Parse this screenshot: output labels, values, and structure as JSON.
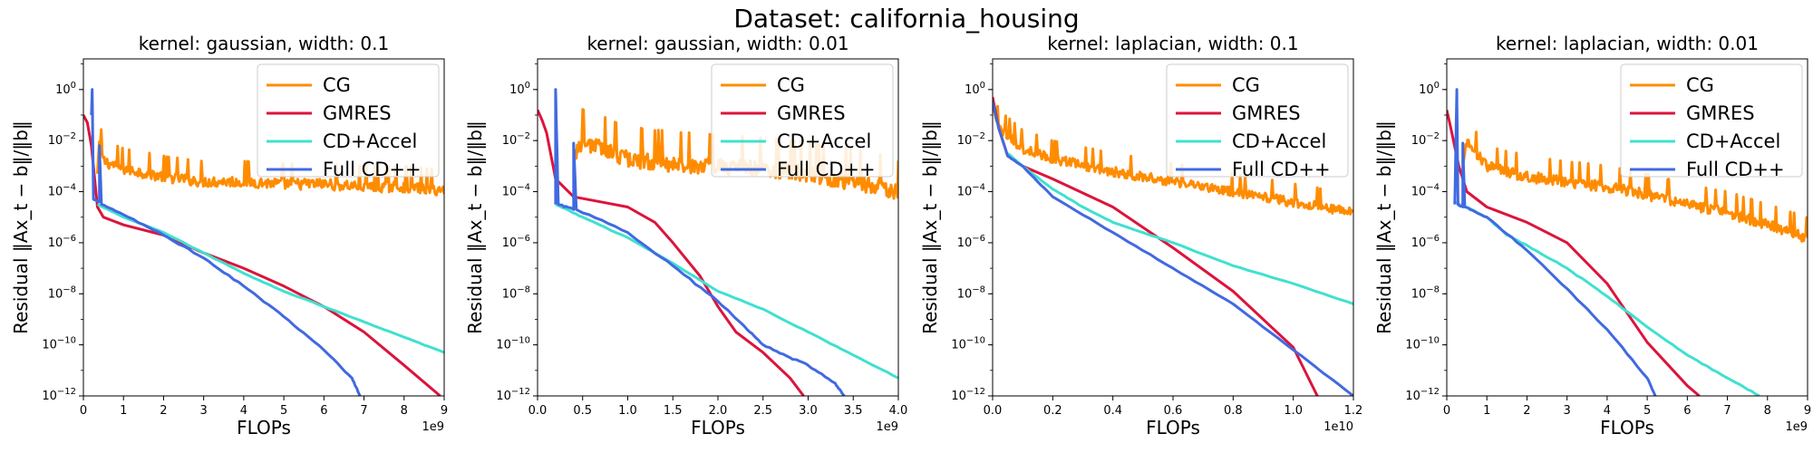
{
  "suptitle": "Dataset: california_housing",
  "colors": {
    "CG": "#ff8c00",
    "GMRES": "#dc143c",
    "CD+Accel": "#40e0d0",
    "Full CD++": "#4169e1"
  },
  "chart_data": [
    {
      "type": "line",
      "title": "kernel: gaussian, width: 0.1",
      "xlabel": "FLOPs",
      "ylabel": "Residual ‖Ax_t − b‖/‖b‖",
      "x_offset_label": "1e9",
      "x_scale": 1000000000.0,
      "xlim": [
        0,
        9
      ],
      "ylim_log10": [
        -12,
        1.2
      ],
      "y_scale": "log",
      "xticks": [
        0,
        1,
        2,
        3,
        4,
        5,
        6,
        7,
        8,
        9
      ],
      "xtick_labels": [
        "0",
        "1",
        "2",
        "3",
        "4",
        "5",
        "6",
        "7",
        "8",
        "9"
      ],
      "legend": "upper right",
      "series": [
        {
          "name": "CG",
          "noise": 0.45,
          "points": [
            [
              0.35,
              -3.3
            ],
            [
              0.4,
              -2.0
            ],
            [
              0.5,
              -2.8
            ],
            [
              1,
              -3.1
            ],
            [
              2,
              -3.4
            ],
            [
              3,
              -3.6
            ],
            [
              4,
              -3.6
            ],
            [
              5,
              -3.7
            ],
            [
              6,
              -3.7
            ],
            [
              7,
              -3.8
            ],
            [
              8,
              -3.8
            ],
            [
              9,
              -3.95
            ]
          ]
        },
        {
          "name": "GMRES",
          "noise": 0,
          "points": [
            [
              0,
              -1.0
            ],
            [
              0.1,
              -1.3
            ],
            [
              0.2,
              -2.2
            ],
            [
              0.35,
              -4.6
            ],
            [
              0.5,
              -5.0
            ],
            [
              1,
              -5.3
            ],
            [
              2,
              -5.7
            ],
            [
              3,
              -6.4
            ],
            [
              4,
              -7.0
            ],
            [
              5,
              -7.7
            ],
            [
              6,
              -8.5
            ],
            [
              7,
              -9.5
            ],
            [
              8,
              -10.8
            ],
            [
              8.9,
              -12.0
            ]
          ]
        },
        {
          "name": "CD+Accel",
          "noise": 0.02,
          "points": [
            [
              0.35,
              -4.5
            ],
            [
              1,
              -5.0
            ],
            [
              2,
              -5.6
            ],
            [
              3,
              -6.4
            ],
            [
              4,
              -7.2
            ],
            [
              5,
              -7.9
            ],
            [
              6,
              -8.5
            ],
            [
              7,
              -9.1
            ],
            [
              8,
              -9.7
            ],
            [
              9,
              -10.3
            ]
          ]
        },
        {
          "name": "Full CD++",
          "noise": 0.05,
          "points": [
            [
              0.2,
              -1.0
            ],
            [
              0.22,
              0.0
            ],
            [
              0.25,
              -4.3
            ],
            [
              0.4,
              -4.4
            ],
            [
              0.4,
              -2.2
            ],
            [
              0.45,
              -4.5
            ],
            [
              1,
              -4.9
            ],
            [
              2,
              -5.7
            ],
            [
              3,
              -6.6
            ],
            [
              4,
              -7.7
            ],
            [
              5,
              -8.9
            ],
            [
              6,
              -10.2
            ],
            [
              6.7,
              -11.3
            ],
            [
              6.9,
              -12.0
            ]
          ]
        }
      ]
    },
    {
      "type": "line",
      "title": "kernel: gaussian, width: 0.01",
      "xlabel": "FLOPs",
      "ylabel": "Residual ‖Ax_t − b‖/‖b‖",
      "x_offset_label": "1e9",
      "x_scale": 1000000000.0,
      "xlim": [
        0,
        4
      ],
      "ylim_log10": [
        -12,
        1.2
      ],
      "y_scale": "log",
      "xticks": [
        0,
        0.5,
        1,
        1.5,
        2,
        2.5,
        3,
        3.5,
        4
      ],
      "xtick_labels": [
        "0.0",
        "0.5",
        "1.0",
        "1.5",
        "2.0",
        "2.5",
        "3.0",
        "3.5",
        "4.0"
      ],
      "legend": "upper right",
      "series": [
        {
          "name": "CG",
          "noise": 0.7,
          "points": [
            [
              0.4,
              -2.5
            ],
            [
              0.5,
              -2.0
            ],
            [
              1,
              -2.7
            ],
            [
              1.5,
              -2.9
            ],
            [
              2,
              -3.0
            ],
            [
              2.5,
              -3.1
            ],
            [
              3,
              -3.3
            ],
            [
              3.5,
              -3.6
            ],
            [
              3.8,
              -3.8
            ],
            [
              4,
              -4.0
            ]
          ]
        },
        {
          "name": "GMRES",
          "noise": 0,
          "points": [
            [
              0,
              -0.8
            ],
            [
              0.05,
              -1.2
            ],
            [
              0.1,
              -1.7
            ],
            [
              0.2,
              -3.5
            ],
            [
              0.4,
              -4.2
            ],
            [
              0.7,
              -4.4
            ],
            [
              1.0,
              -4.6
            ],
            [
              1.3,
              -5.2
            ],
            [
              1.5,
              -6.0
            ],
            [
              1.8,
              -7.3
            ],
            [
              2.0,
              -8.5
            ],
            [
              2.2,
              -9.5
            ],
            [
              2.5,
              -10.3
            ],
            [
              2.8,
              -11.3
            ],
            [
              2.95,
              -12.0
            ]
          ]
        },
        {
          "name": "CD+Accel",
          "noise": 0.03,
          "points": [
            [
              0.2,
              -4.5
            ],
            [
              0.5,
              -5.0
            ],
            [
              1,
              -5.8
            ],
            [
              1.5,
              -6.8
            ],
            [
              2,
              -7.9
            ],
            [
              2.5,
              -8.6
            ],
            [
              3,
              -9.5
            ],
            [
              3.5,
              -10.4
            ],
            [
              4,
              -11.3
            ]
          ]
        },
        {
          "name": "Full CD++",
          "noise": 0.06,
          "points": [
            [
              0.2,
              -4.5
            ],
            [
              0.2,
              0.0
            ],
            [
              0.23,
              -4.5
            ],
            [
              0.4,
              -4.7
            ],
            [
              0.4,
              -2.1
            ],
            [
              0.43,
              -4.7
            ],
            [
              1,
              -5.6
            ],
            [
              1.5,
              -6.9
            ],
            [
              2,
              -8.3
            ],
            [
              2.3,
              -9.3
            ],
            [
              2.5,
              -10.0
            ],
            [
              2.8,
              -10.5
            ],
            [
              3,
              -10.8
            ],
            [
              3.3,
              -11.5
            ],
            [
              3.4,
              -12.0
            ]
          ]
        }
      ]
    },
    {
      "type": "line",
      "title": "kernel: laplacian, width: 0.1",
      "xlabel": "FLOPs",
      "ylabel": "Residual ‖Ax_t − b‖/‖b‖",
      "x_offset_label": "1e10",
      "x_scale": 10000000000.0,
      "xlim": [
        0,
        1.2
      ],
      "ylim_log10": [
        -12,
        1.2
      ],
      "y_scale": "log",
      "xticks": [
        0,
        0.2,
        0.4,
        0.6,
        0.8,
        1.0,
        1.2
      ],
      "xtick_labels": [
        "0.0",
        "0.2",
        "0.4",
        "0.6",
        "0.8",
        "1.0",
        "1.2"
      ],
      "legend": "upper right",
      "series": [
        {
          "name": "CG",
          "noise": 0.4,
          "points": [
            [
              0,
              -0.6
            ],
            [
              0.02,
              -1.5
            ],
            [
              0.1,
              -2.3
            ],
            [
              0.2,
              -2.7
            ],
            [
              0.4,
              -3.2
            ],
            [
              0.6,
              -3.6
            ],
            [
              0.8,
              -4.0
            ],
            [
              1.0,
              -4.4
            ],
            [
              1.2,
              -4.8
            ]
          ]
        },
        {
          "name": "GMRES",
          "noise": 0,
          "points": [
            [
              0,
              -0.3
            ],
            [
              0.02,
              -1.5
            ],
            [
              0.05,
              -2.6
            ],
            [
              0.1,
              -3.0
            ],
            [
              0.2,
              -3.5
            ],
            [
              0.4,
              -4.6
            ],
            [
              0.6,
              -6.2
            ],
            [
              0.8,
              -7.9
            ],
            [
              1.0,
              -10.1
            ],
            [
              1.08,
              -12.0
            ]
          ]
        },
        {
          "name": "CD+Accel",
          "noise": 0.02,
          "points": [
            [
              0.05,
              -2.5
            ],
            [
              0.1,
              -3.0
            ],
            [
              0.2,
              -3.9
            ],
            [
              0.3,
              -4.6
            ],
            [
              0.4,
              -5.2
            ],
            [
              0.6,
              -6.0
            ],
            [
              0.8,
              -6.9
            ],
            [
              1.0,
              -7.6
            ],
            [
              1.2,
              -8.4
            ]
          ]
        },
        {
          "name": "Full CD++",
          "noise": 0.03,
          "points": [
            [
              0,
              -0.5
            ],
            [
              0.02,
              -1.5
            ],
            [
              0.05,
              -2.6
            ],
            [
              0.1,
              -3.0
            ],
            [
              0.2,
              -4.2
            ],
            [
              0.4,
              -5.6
            ],
            [
              0.6,
              -7.0
            ],
            [
              0.8,
              -8.4
            ],
            [
              1.0,
              -10.2
            ],
            [
              1.2,
              -12.0
            ]
          ]
        }
      ]
    },
    {
      "type": "line",
      "title": "kernel: laplacian, width: 0.01",
      "xlabel": "FLOPs",
      "ylabel": "Residual ‖Ax_t − b‖/‖b‖",
      "x_offset_label": "1e9",
      "x_scale": 1000000000.0,
      "xlim": [
        0,
        9
      ],
      "ylim_log10": [
        -12,
        1.2
      ],
      "y_scale": "log",
      "xticks": [
        0,
        1,
        2,
        3,
        4,
        5,
        6,
        7,
        8,
        9
      ],
      "xtick_labels": [
        "0",
        "1",
        "2",
        "3",
        "4",
        "5",
        "6",
        "7",
        "8",
        "9"
      ],
      "legend": "upper right",
      "series": [
        {
          "name": "CG",
          "noise": 0.45,
          "points": [
            [
              0.4,
              -3.0
            ],
            [
              0.5,
              -2.0
            ],
            [
              1,
              -3.0
            ],
            [
              2,
              -3.4
            ],
            [
              3,
              -3.6
            ],
            [
              4,
              -3.8
            ],
            [
              5,
              -4.1
            ],
            [
              6,
              -4.5
            ],
            [
              7,
              -4.8
            ],
            [
              8,
              -5.3
            ],
            [
              9,
              -5.8
            ]
          ]
        },
        {
          "name": "GMRES",
          "noise": 0,
          "points": [
            [
              0,
              -0.8
            ],
            [
              0.1,
              -1.5
            ],
            [
              0.3,
              -3.0
            ],
            [
              0.5,
              -4.0
            ],
            [
              1,
              -4.6
            ],
            [
              2,
              -5.2
            ],
            [
              3,
              -6.0
            ],
            [
              4,
              -7.6
            ],
            [
              5,
              -9.9
            ],
            [
              6,
              -11.6
            ],
            [
              6.3,
              -12.0
            ]
          ]
        },
        {
          "name": "CD+Accel",
          "noise": 0.04,
          "points": [
            [
              0.2,
              -4.4
            ],
            [
              1,
              -5.0
            ],
            [
              1.5,
              -5.7
            ],
            [
              2,
              -6.1
            ],
            [
              3,
              -7.0
            ],
            [
              4,
              -8.1
            ],
            [
              5,
              -9.3
            ],
            [
              6,
              -10.4
            ],
            [
              7,
              -11.3
            ],
            [
              7.8,
              -12.0
            ]
          ]
        },
        {
          "name": "Full CD++",
          "noise": 0.05,
          "points": [
            [
              0.2,
              -4.5
            ],
            [
              0.25,
              0.0
            ],
            [
              0.28,
              -4.5
            ],
            [
              0.4,
              -4.6
            ],
            [
              0.4,
              -2.1
            ],
            [
              0.45,
              -4.6
            ],
            [
              1,
              -5.0
            ],
            [
              2,
              -6.3
            ],
            [
              3,
              -7.8
            ],
            [
              4,
              -9.4
            ],
            [
              5,
              -11.3
            ],
            [
              5.2,
              -12.0
            ]
          ]
        }
      ]
    }
  ]
}
